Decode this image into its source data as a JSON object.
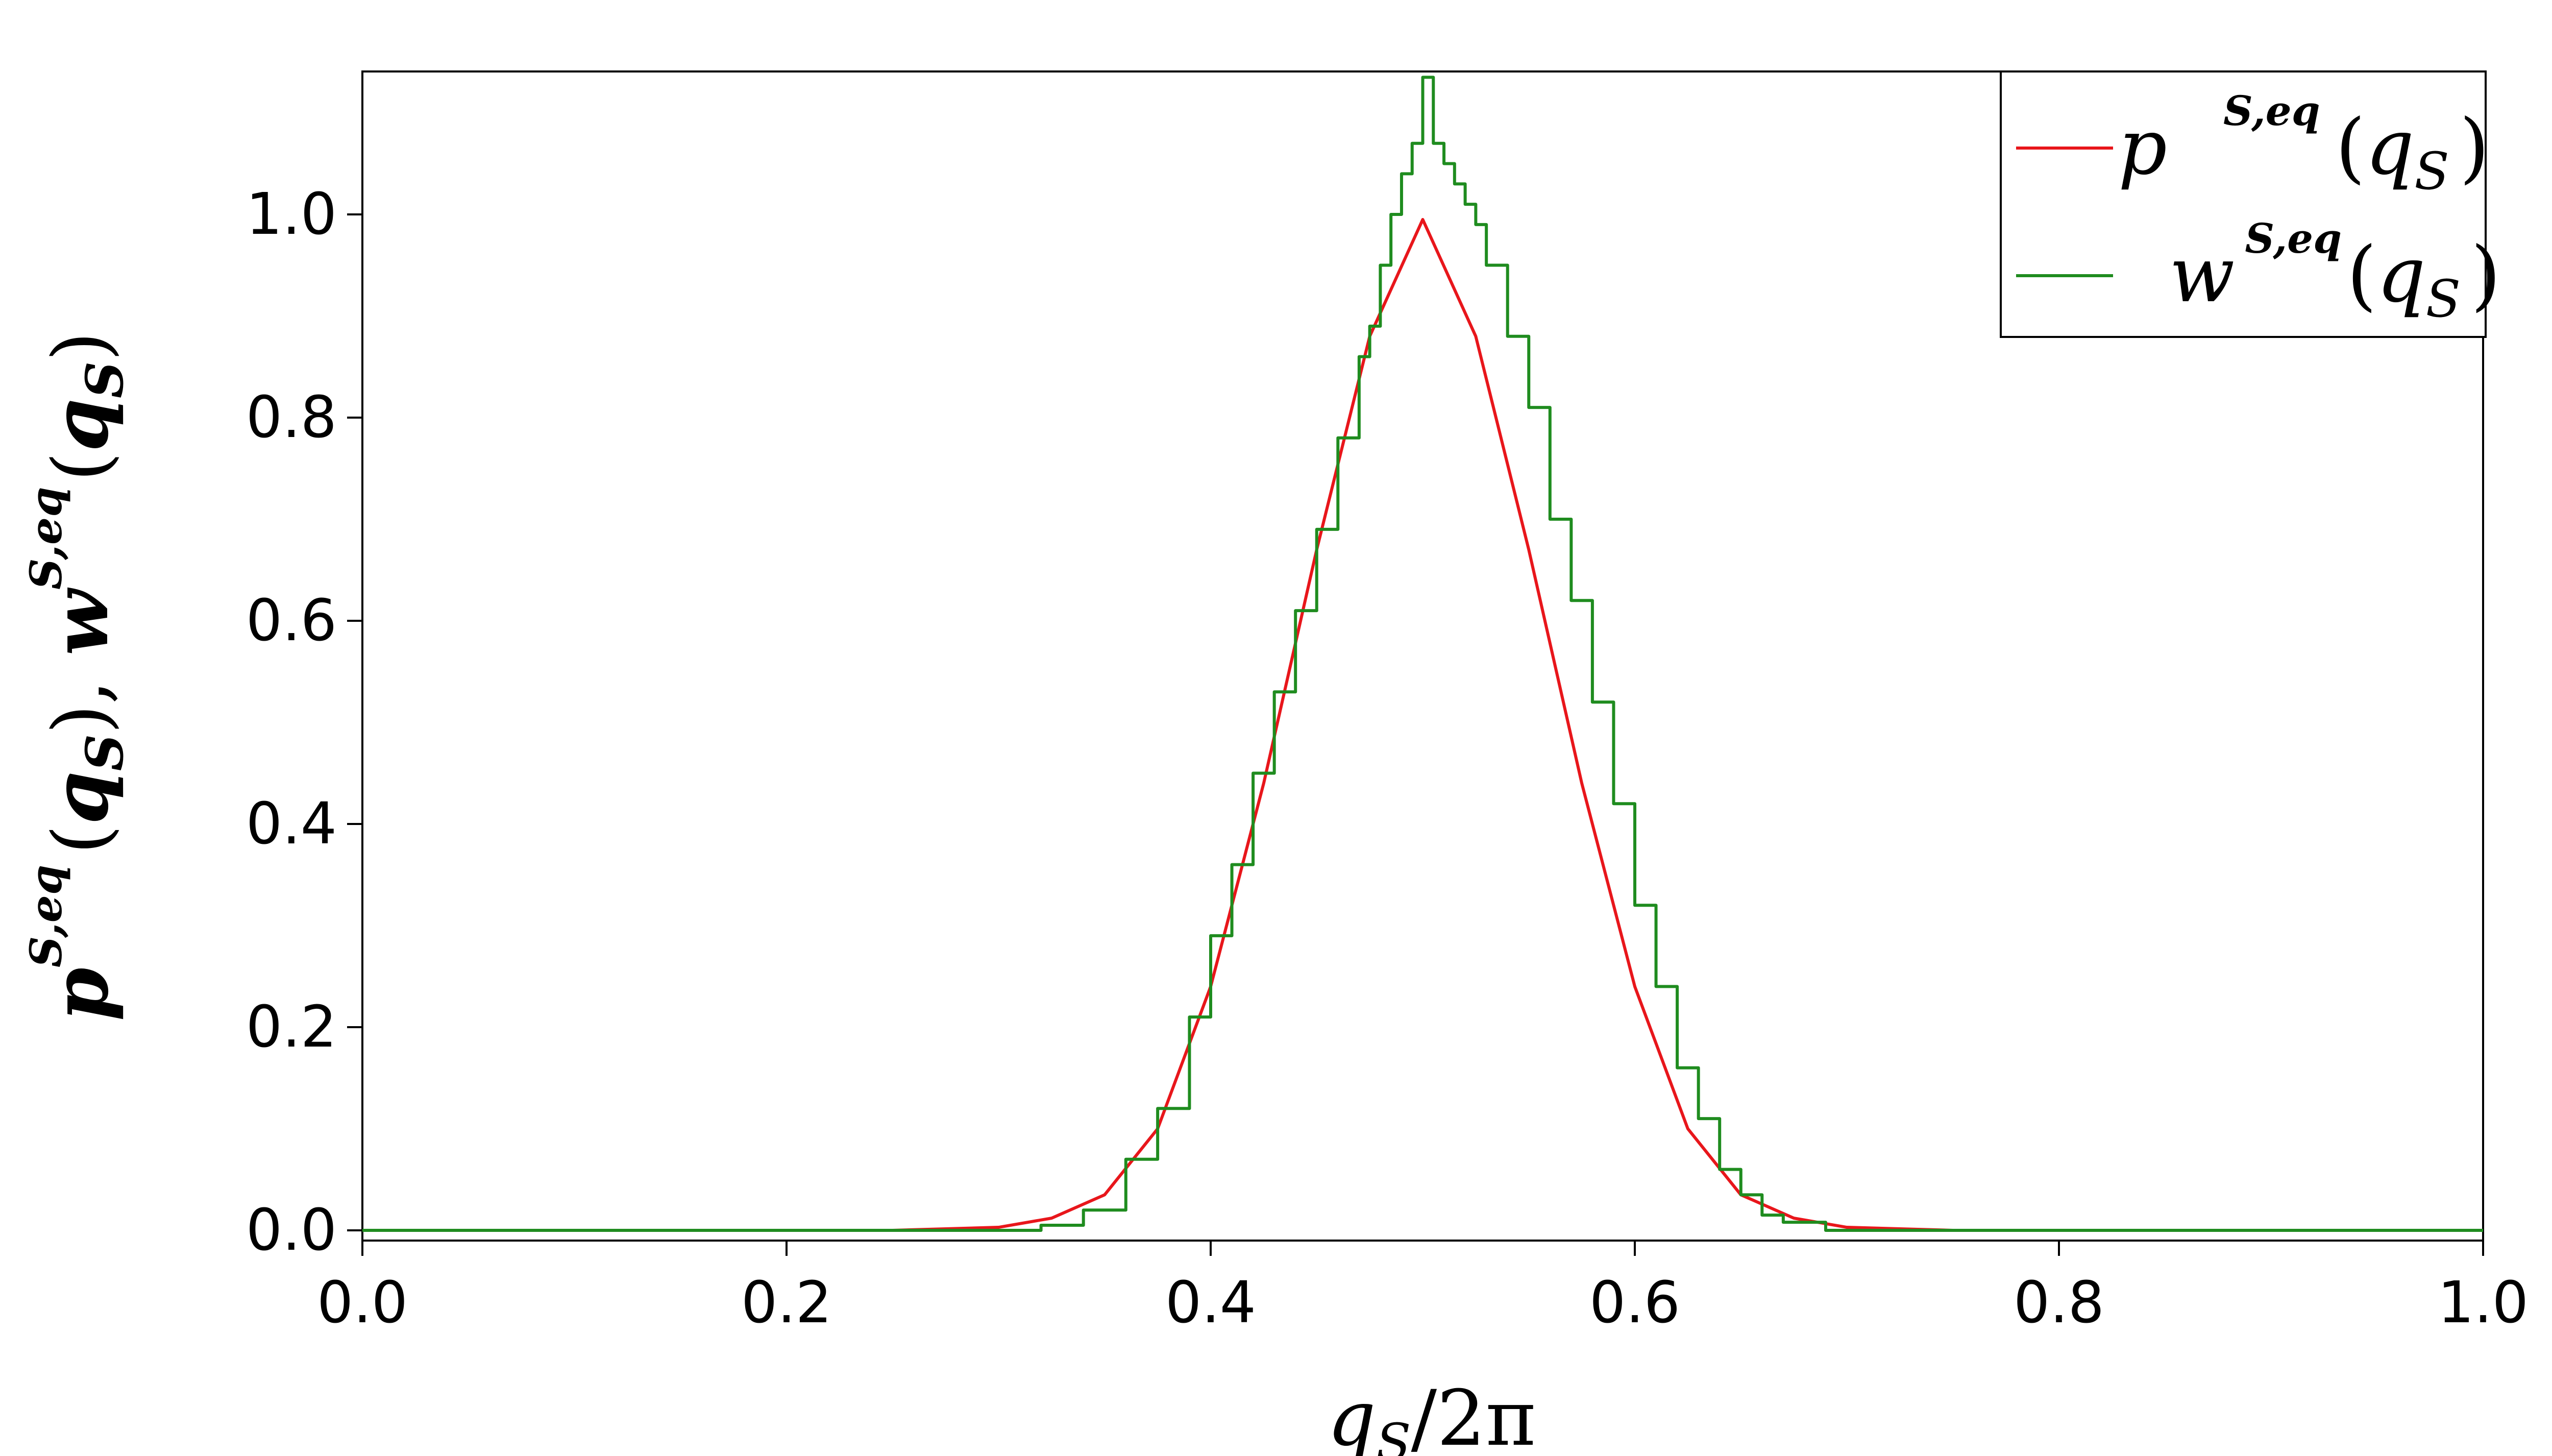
{
  "chart_data": {
    "type": "line",
    "xlim": [
      0.0,
      1.0
    ],
    "ylim": [
      -0.02,
      1.14
    ],
    "x_ticks": [
      "0.0",
      "0.2",
      "0.4",
      "0.6",
      "0.8",
      "1.0"
    ],
    "y_ticks": [
      "0.0",
      "0.2",
      "0.4",
      "0.6",
      "0.8",
      "1.0"
    ],
    "xlabel": {
      "var": "q",
      "sub": "S",
      "rest": "/2π"
    },
    "ylabel": {
      "p": "p",
      "w": "w",
      "sup": "S,eq",
      "var": "q",
      "sub": "S",
      "sep": ", "
    },
    "grid": false,
    "legend_position": "top-right",
    "series": [
      {
        "name": "p^{S,eq}(q_S)",
        "legend_letter": "p",
        "legend_sup": "S,eq",
        "legend_var": "q",
        "legend_sub": "S",
        "color": "#e8161b",
        "style": "smooth",
        "points": [
          [
            0.0,
            0.0
          ],
          [
            0.25,
            0.0
          ],
          [
            0.3,
            0.003
          ],
          [
            0.325,
            0.012
          ],
          [
            0.35,
            0.035
          ],
          [
            0.375,
            0.1
          ],
          [
            0.4,
            0.24
          ],
          [
            0.425,
            0.44
          ],
          [
            0.45,
            0.67
          ],
          [
            0.475,
            0.88
          ],
          [
            0.5,
            0.995
          ],
          [
            0.525,
            0.88
          ],
          [
            0.55,
            0.67
          ],
          [
            0.575,
            0.44
          ],
          [
            0.6,
            0.24
          ],
          [
            0.625,
            0.1
          ],
          [
            0.65,
            0.035
          ],
          [
            0.675,
            0.012
          ],
          [
            0.7,
            0.003
          ],
          [
            0.75,
            0.0
          ],
          [
            1.0,
            0.0
          ]
        ]
      },
      {
        "name": "w^{S,eq}(q_S)",
        "legend_letter": "w",
        "legend_sup": "S,eq",
        "legend_var": "q",
        "legend_sub": "S",
        "color": "#1f8c1f",
        "style": "step",
        "points": [
          [
            0.0,
            0.0
          ],
          [
            0.3,
            0.0
          ],
          [
            0.32,
            0.005
          ],
          [
            0.34,
            0.02
          ],
          [
            0.36,
            0.07
          ],
          [
            0.375,
            0.12
          ],
          [
            0.39,
            0.21
          ],
          [
            0.4,
            0.29
          ],
          [
            0.41,
            0.36
          ],
          [
            0.42,
            0.45
          ],
          [
            0.43,
            0.53
          ],
          [
            0.44,
            0.61
          ],
          [
            0.45,
            0.69
          ],
          [
            0.46,
            0.78
          ],
          [
            0.47,
            0.86
          ],
          [
            0.475,
            0.89
          ],
          [
            0.48,
            0.95
          ],
          [
            0.485,
            1.0
          ],
          [
            0.49,
            1.04
          ],
          [
            0.495,
            1.07
          ],
          [
            0.5,
            1.135
          ],
          [
            0.505,
            1.07
          ],
          [
            0.51,
            1.05
          ],
          [
            0.515,
            1.03
          ],
          [
            0.52,
            1.01
          ],
          [
            0.525,
            0.99
          ],
          [
            0.53,
            0.95
          ],
          [
            0.54,
            0.88
          ],
          [
            0.55,
            0.81
          ],
          [
            0.56,
            0.7
          ],
          [
            0.57,
            0.62
          ],
          [
            0.58,
            0.52
          ],
          [
            0.59,
            0.42
          ],
          [
            0.6,
            0.32
          ],
          [
            0.61,
            0.24
          ],
          [
            0.62,
            0.16
          ],
          [
            0.63,
            0.11
          ],
          [
            0.64,
            0.06
          ],
          [
            0.65,
            0.035
          ],
          [
            0.66,
            0.015
          ],
          [
            0.67,
            0.008
          ],
          [
            0.69,
            0.0
          ],
          [
            1.0,
            0.0
          ]
        ]
      }
    ]
  }
}
